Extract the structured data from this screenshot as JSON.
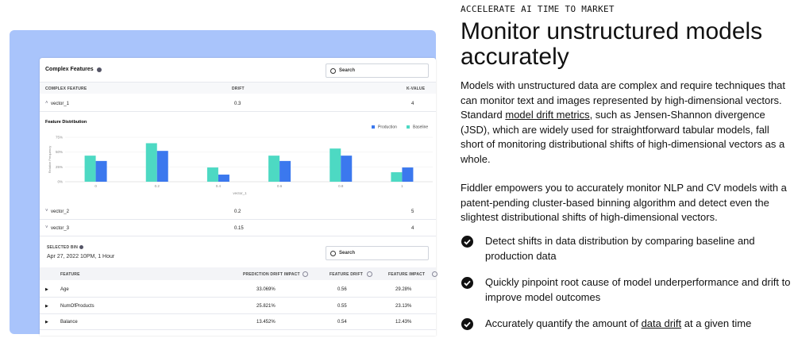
{
  "hero": {
    "eyebrow": "ACCELERATE AI TIME TO MARKET",
    "title": "Monitor unstructured models accurately",
    "paragraph1": [
      "Models with unstructured data are complex and require techniques that can monitor text and images represented by high-dimensional vectors. Standard ",
      "model drift metrics",
      ", such as Jensen-Shannon divergence (JSD), which are widely used for straightforward tabular models, fall short of monitoring distributional shifts of high-dimensional vectors as a whole."
    ],
    "paragraph2": "Fiddler empowers you to accurately monitor NLP and CV models with a patent-pending cluster-based binning algorithm and detect even the slightest distributional shifts of high-dimensional vectors.",
    "bullets": [
      [
        "Detect shifts in data distribution by comparing baseline and production data"
      ],
      [
        "Quickly pinpoint root cause of model underperformance and drift to improve model outcomes"
      ],
      [
        "Accurately quantify the amount of ",
        "data drift",
        " at a given time"
      ]
    ]
  },
  "card": {
    "title": "Complex Features",
    "search": "Search",
    "columns": [
      "COMPLEX FEATURE",
      "DRIFT",
      "K-VALUE"
    ],
    "rows": [
      [
        "vector_1",
        "0.3",
        "4"
      ],
      [
        "vector_2",
        "0.2",
        "5"
      ],
      [
        "vector_3",
        "0.15",
        "4"
      ]
    ],
    "chart": {
      "type": "bar",
      "title": "Feature Distribution",
      "xlabel": "vector_1",
      "ylabel": "Relative Frequency",
      "categories": [
        "0",
        "0.2",
        "0.4",
        "0.6",
        "0.8",
        "1"
      ],
      "series": [
        {
          "name": "Production",
          "color": "#3b78ee",
          "values": [
            35,
            52,
            12,
            35,
            44,
            24
          ]
        },
        {
          "name": "Baseline",
          "color": "#4dd9c3",
          "values": [
            44,
            65,
            24,
            44,
            56,
            16
          ]
        }
      ],
      "ylim": [
        0,
        75
      ],
      "yticks": [
        {
          "value": 0,
          "label": "0%"
        },
        {
          "value": 25,
          "label": "25%"
        },
        {
          "value": 50,
          "label": "50%"
        },
        {
          "value": 75,
          "label": "75%"
        }
      ]
    },
    "selected_bin": {
      "label": "SELECTED BIN",
      "date": "Apr 27, 2022 10PM, 1 Hour",
      "search": "Search",
      "columns": [
        "FEATURE",
        "PREDICTION DRIFT IMPACT",
        "FEATURE DRIFT",
        "FEATURE IMPACT"
      ],
      "rows": [
        [
          "Age",
          "33.069%",
          "0.56",
          "29.28%"
        ],
        [
          "NumOfProducts",
          "25.821%",
          "0.55",
          "23.13%"
        ],
        [
          "Balance",
          "13.452%",
          "0.54",
          "12.43%"
        ]
      ]
    }
  }
}
